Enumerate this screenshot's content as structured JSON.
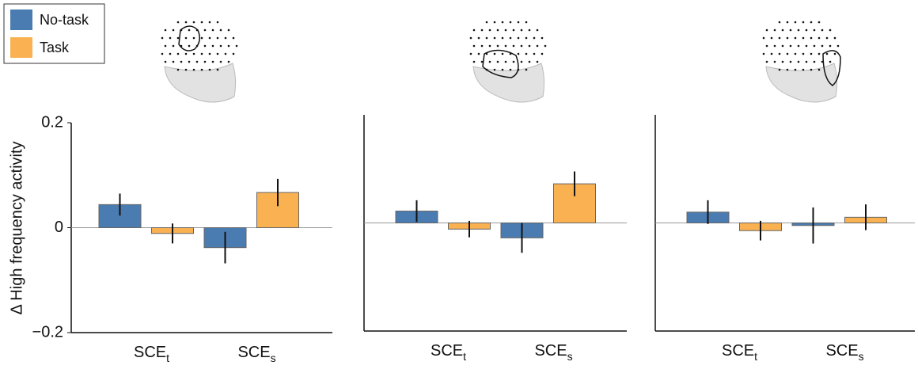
{
  "chart_data": [
    {
      "type": "bar",
      "y_label": "Δ High frequency activity",
      "categories": [
        "SCE",
        "SCE"
      ],
      "category_subscripts": [
        "t",
        "s"
      ],
      "ylim": [
        -0.2,
        0.2
      ],
      "yticks": [
        {
          "value": -0.2,
          "label": "−0.2"
        },
        0,
        0.2
      ],
      "series": [
        {
          "name": "No-task",
          "color": "#4a7bb1",
          "values": [
            0.044,
            -0.038
          ],
          "errors": [
            0.021,
            0.03
          ]
        },
        {
          "name": "Task",
          "color": "#f9b152",
          "values": [
            -0.011,
            0.067
          ],
          "errors": [
            0.019,
            0.026
          ]
        }
      ]
    },
    {
      "type": "bar",
      "categories": [
        "SCE",
        "SCE"
      ],
      "category_subscripts": [
        "t",
        "s"
      ],
      "ylim": [
        -0.21,
        0.21
      ],
      "series": [
        {
          "name": "No-task",
          "color": "#4a7bb1",
          "values": [
            0.023,
            -0.029
          ],
          "errors": [
            0.021,
            0.029
          ]
        },
        {
          "name": "Task",
          "color": "#f9b152",
          "values": [
            -0.012,
            0.076
          ],
          "errors": [
            0.016,
            0.024
          ]
        }
      ]
    },
    {
      "type": "bar",
      "categories": [
        "SCE",
        "SCE"
      ],
      "category_subscripts": [
        "t",
        "s"
      ],
      "ylim": [
        -0.21,
        0.21
      ],
      "series": [
        {
          "name": "No-task",
          "color": "#4a7bb1",
          "values": [
            0.021,
            -0.005
          ],
          "errors": [
            0.023,
            0.035
          ]
        },
        {
          "name": "Task",
          "color": "#f9b152",
          "values": [
            -0.015,
            0.011
          ],
          "errors": [
            0.019,
            0.025
          ]
        }
      ]
    }
  ]
}
